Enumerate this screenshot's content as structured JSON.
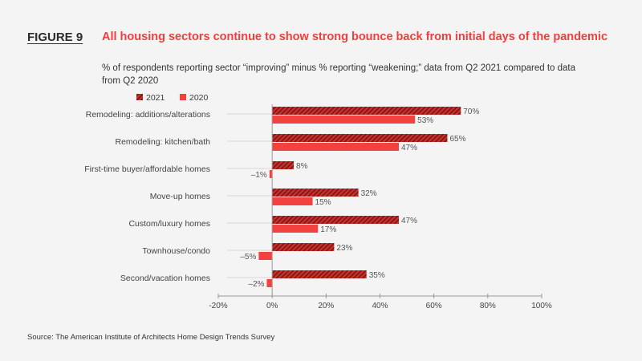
{
  "figure": {
    "label": "FIGURE 9",
    "title": "All housing sectors continue to show strong bounce back from initial days of the pandemic",
    "subtitle": "% of respondents reporting sector “improving” minus % reporting “weakening;” data from Q2 2021 compared to data from Q2 2020",
    "source": "Source: The American Institute of Architects Home Design Trends Survey"
  },
  "colors": {
    "accent": "#ef3e3e",
    "series_2021": "#c8302c",
    "series_2021_hatch": "#7a1512",
    "series_2020": "#f2423f",
    "axis": "#999999",
    "text": "#3a3a3a"
  },
  "chart_data": {
    "type": "bar",
    "orientation": "horizontal",
    "categories": [
      "Remodeling: additions/alterations",
      "Remodeling: kitchen/bath",
      "First-time buyer/affordable homes",
      "Move-up homes",
      "Custom/luxury homes",
      "Townhouse/condo",
      "Second/vacation homes"
    ],
    "series": [
      {
        "name": "2021",
        "values": [
          70,
          65,
          8,
          32,
          47,
          23,
          35
        ],
        "labels": [
          "70%",
          "65%",
          "8%",
          "32%",
          "47%",
          "23%",
          "35%"
        ],
        "pattern": "hatched"
      },
      {
        "name": "2020",
        "values": [
          53,
          47,
          -1,
          15,
          17,
          -5,
          -2
        ],
        "labels": [
          "53%",
          "47%",
          "–1%",
          "15%",
          "17%",
          "–5%",
          "–2%"
        ],
        "pattern": "solid"
      }
    ],
    "xlim": [
      -20,
      100
    ],
    "xticks": [
      -20,
      0,
      20,
      40,
      60,
      80,
      100
    ],
    "xtick_labels": [
      "-20%",
      "0%",
      "20%",
      "40%",
      "60%",
      "80%",
      "100%"
    ],
    "xlabel": "",
    "ylabel": "",
    "legend": "top-left",
    "grid": false
  }
}
